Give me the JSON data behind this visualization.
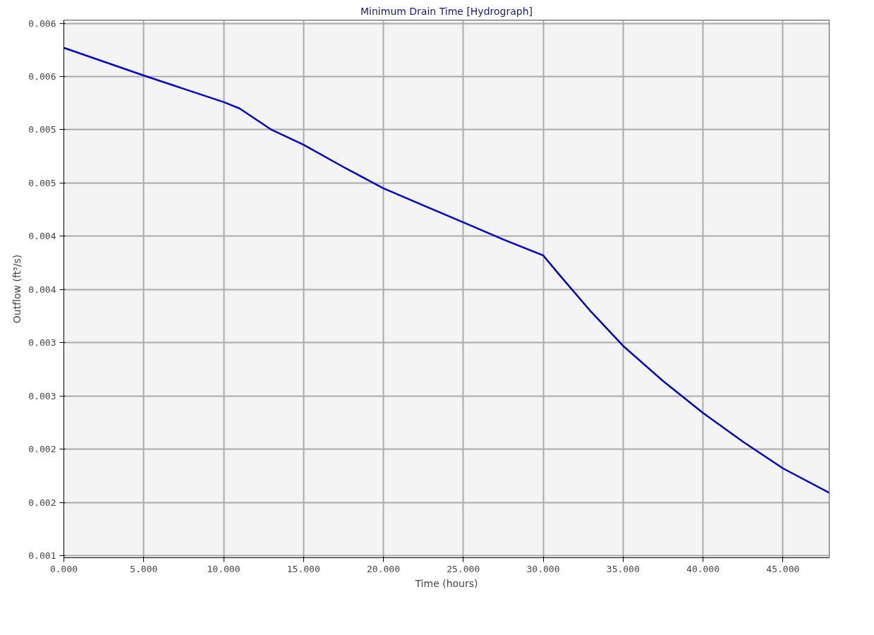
{
  "chart_data": {
    "type": "line",
    "title": "Minimum Drain Time [Hydrograph]",
    "xlabel": "Time (hours)",
    "ylabel": "Outflow (ft³/s)",
    "x": [
      0,
      5,
      10,
      11,
      13,
      15,
      17.5,
      20,
      22.5,
      25,
      27.5,
      30,
      31,
      33,
      35,
      37.5,
      40,
      42.5,
      45,
      47.9
    ],
    "series": [
      {
        "color": "#0000cc",
        "values": [
          0.00577,
          0.00551,
          0.00526,
          0.0052,
          0.005,
          0.00486,
          0.00465,
          0.00445,
          0.00429,
          0.00413,
          0.00397,
          0.00382,
          0.00364,
          0.00329,
          0.00297,
          0.00264,
          0.00234,
          0.00207,
          0.00182,
          0.00159
        ]
      }
    ],
    "xlim": [
      0,
      47.9
    ],
    "xticks": [
      {
        "value": 0,
        "label": "0.000"
      },
      {
        "value": 5,
        "label": "5.000"
      },
      {
        "value": 10,
        "label": "10.000"
      },
      {
        "value": 15,
        "label": "15.000"
      },
      {
        "value": 20,
        "label": "20.000"
      },
      {
        "value": 25,
        "label": "25.000"
      },
      {
        "value": 30,
        "label": "30.000"
      },
      {
        "value": 35,
        "label": "35.000"
      },
      {
        "value": 40,
        "label": "40.000"
      },
      {
        "value": 45,
        "label": "45.000"
      }
    ],
    "ylim": [
      0.00098,
      0.00603
    ],
    "yticks": [
      {
        "value": 0.001,
        "label": "0.001"
      },
      {
        "value": 0.0015,
        "label": "0.002"
      },
      {
        "value": 0.002,
        "label": "0.002"
      },
      {
        "value": 0.0025,
        "label": "0.003"
      },
      {
        "value": 0.003,
        "label": "0.003"
      },
      {
        "value": 0.0035,
        "label": "0.004"
      },
      {
        "value": 0.004,
        "label": "0.004"
      },
      {
        "value": 0.0045,
        "label": "0.005"
      },
      {
        "value": 0.005,
        "label": "0.005"
      },
      {
        "value": 0.0055,
        "label": "0.006"
      },
      {
        "value": 0.006,
        "label": "0.006"
      }
    ],
    "grid": true,
    "marker": "none",
    "line_style": "solid"
  }
}
